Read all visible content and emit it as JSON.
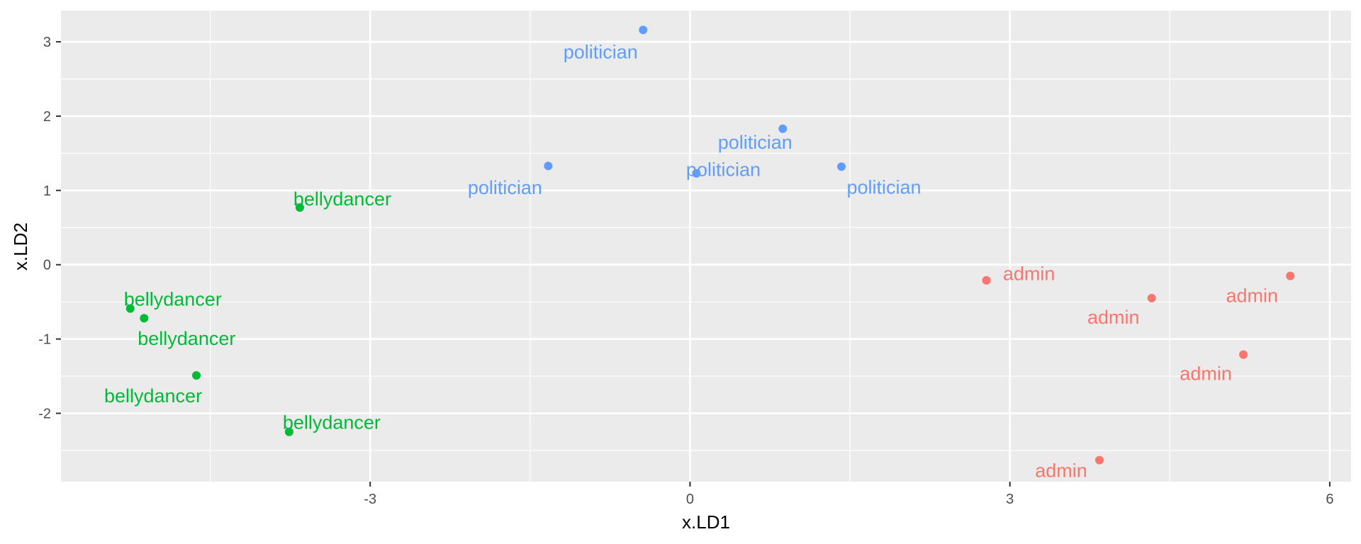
{
  "chart_data": {
    "type": "scatter",
    "xlabel": "x.LD1",
    "ylabel": "x.LD2",
    "xlim": [
      -5.9,
      6.2
    ],
    "ylim": [
      -2.92,
      3.42
    ],
    "x_ticks": [
      -3,
      0,
      3,
      6
    ],
    "y_ticks": [
      3,
      2,
      1,
      0,
      -1,
      -2
    ],
    "grid": true,
    "legend": "none",
    "series": [
      {
        "color": "#F8766D",
        "points": [
          {
            "x": 2.78,
            "y": -0.21,
            "label": "admin"
          },
          {
            "x": 4.33,
            "y": -0.45,
            "label": "admin"
          },
          {
            "x": 5.63,
            "y": -0.15,
            "label": "admin"
          },
          {
            "x": 5.19,
            "y": -1.21,
            "label": "admin"
          },
          {
            "x": 3.84,
            "y": -2.63,
            "label": "admin"
          }
        ]
      },
      {
        "color": "#00BA38",
        "points": [
          {
            "x": -3.66,
            "y": 0.77,
            "label": "bellydancer"
          },
          {
            "x": -5.25,
            "y": -0.59,
            "label": "bellydancer"
          },
          {
            "x": -5.12,
            "y": -0.72,
            "label": "bellydancer"
          },
          {
            "x": -4.63,
            "y": -1.49,
            "label": "bellydancer"
          },
          {
            "x": -3.76,
            "y": -2.25,
            "label": "bellydancer"
          }
        ]
      },
      {
        "color": "#619CFF",
        "points": [
          {
            "x": -0.44,
            "y": 3.16,
            "label": "politician"
          },
          {
            "x": 0.87,
            "y": 1.83,
            "label": "politician"
          },
          {
            "x": -1.33,
            "y": 1.33,
            "label": "politician"
          },
          {
            "x": 0.06,
            "y": 1.23,
            "label": "politician"
          },
          {
            "x": 1.42,
            "y": 1.32,
            "label": "politician"
          }
        ]
      }
    ]
  }
}
